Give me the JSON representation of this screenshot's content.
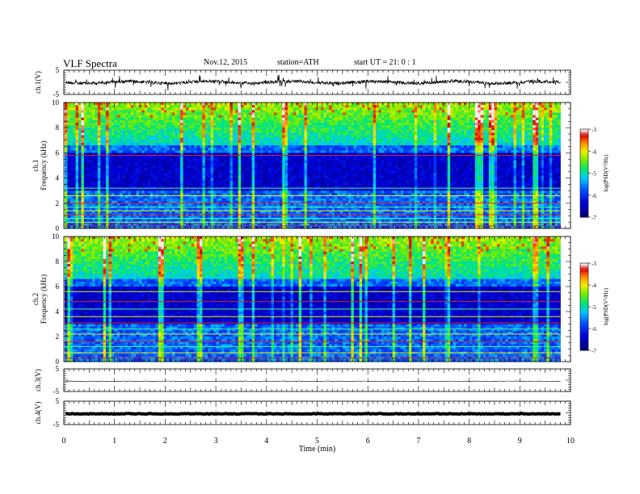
{
  "header": {
    "title": "VLF  Spectra",
    "date": "Nov.12, 2015",
    "station": "station=ATH",
    "start": "start  UT  =   21: 0  : 1"
  },
  "chart_data": [
    {
      "type": "line",
      "panel": "ch1-waveform",
      "ylabel": "ch.1(V)",
      "ylim": [
        -5,
        5
      ],
      "yticks": [
        "5",
        "-5"
      ],
      "baseline": 0
    },
    {
      "type": "heatmap",
      "panel": "ch1-spectrogram",
      "ylabel": [
        "ch.1",
        "Frequency  (kHz)"
      ],
      "ylim": [
        0,
        10
      ],
      "yticks": [
        "0",
        "2",
        "4",
        "6",
        "8",
        "10"
      ],
      "colorbar": {
        "label": "log(PSD(V²/Hz)",
        "ticks": [
          "-3",
          "-4",
          "-5",
          "-6",
          "-7"
        ],
        "range": [
          -7,
          -3
        ]
      },
      "features": {
        "dark_band_khz": [
          3,
          6
        ],
        "noise_lines_khz": [
          0.2,
          0.5,
          0.8,
          1.1,
          1.4,
          1.7,
          2.0,
          2.6,
          3.2,
          5.8
        ]
      }
    },
    {
      "type": "heatmap",
      "panel": "ch2-spectrogram",
      "ylabel": [
        "ch.2",
        "Frequency  (kHz)"
      ],
      "ylim": [
        0,
        10
      ],
      "yticks": [
        "0",
        "2",
        "4",
        "6",
        "8",
        "10"
      ],
      "colorbar": {
        "label": "log(PSD(V²/Hz)",
        "ticks": [
          "-3",
          "-4",
          "-5",
          "-6",
          "-7"
        ],
        "range": [
          -7,
          -3
        ]
      },
      "features": {
        "dark_band_khz": [
          3,
          6
        ],
        "noise_lines_khz": [
          0.3,
          0.7,
          1.2,
          1.6,
          2.2,
          2.6,
          3.1,
          3.6,
          4.2,
          4.8,
          5.6
        ]
      }
    },
    {
      "type": "line",
      "panel": "ch3-waveform",
      "ylabel": "ch.3(V)",
      "ylim": [
        -5,
        5
      ],
      "yticks": [
        "5",
        "-5"
      ],
      "baseline": -0.5
    },
    {
      "type": "line",
      "panel": "ch4-waveform",
      "ylabel": "ch.4(V)",
      "ylim": [
        -5,
        5
      ],
      "yticks": [
        "5",
        "-5"
      ],
      "baseline": -0.4
    }
  ],
  "xaxis": {
    "label": "Time  (min)",
    "range": [
      0,
      10
    ],
    "ticks": [
      "0",
      "1",
      "2",
      "3",
      "4",
      "5",
      "6",
      "7",
      "8",
      "9",
      "10"
    ],
    "data_end": 9.8
  }
}
